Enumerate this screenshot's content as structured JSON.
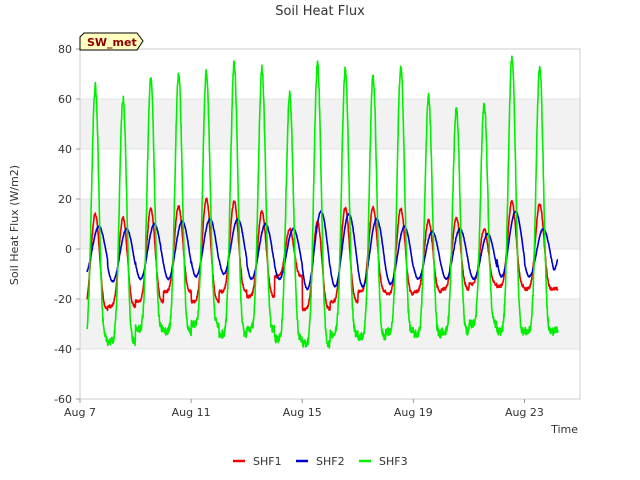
{
  "chart_data": {
    "type": "line",
    "title": "Soil Heat Flux",
    "xlabel": "Time",
    "ylabel": "Soil Heat Flux (W/m2)",
    "ylim": [
      -60,
      80
    ],
    "yticks": [
      -60,
      -40,
      -20,
      0,
      20,
      40,
      60,
      80
    ],
    "xlim": [
      0,
      18
    ],
    "xticks": [
      {
        "value": 0,
        "label": "Aug 7"
      },
      {
        "value": 4,
        "label": "Aug 11"
      },
      {
        "value": 8,
        "label": "Aug 15"
      },
      {
        "value": 12,
        "label": "Aug 19"
      },
      {
        "value": 16,
        "label": "Aug 23"
      }
    ],
    "station_label": "SW_met",
    "legend_position": "bottom",
    "grid": "alternating horizontal bands",
    "series": [
      {
        "name": "SHF1",
        "color": "#ee0000",
        "daily_max": [
          14,
          12.5,
          16,
          17,
          20,
          19,
          15,
          8,
          11,
          16.5,
          16.5,
          16,
          11.5,
          12.5,
          8,
          19,
          18
        ],
        "daily_min": [
          -24,
          -23,
          -21,
          -17,
          -21,
          -17,
          -19,
          -11,
          -24,
          -21,
          -17,
          -18,
          -17,
          -16,
          -14,
          -15,
          -16
        ],
        "end_value": -16
      },
      {
        "name": "SHF2",
        "color": "#0000cc",
        "daily_max": [
          9,
          8,
          10,
          11,
          12,
          12,
          10,
          8,
          15,
          14,
          12,
          9,
          7,
          8,
          6,
          15,
          8
        ],
        "daily_min": [
          -10,
          -13,
          -12,
          -12,
          -11,
          -10,
          -12,
          -12,
          -16,
          -15,
          -15,
          -14,
          -12,
          -12,
          -12,
          -11,
          -11
        ],
        "end_value": -4
      },
      {
        "name": "SHF3",
        "color": "#00ee00",
        "daily_max": [
          65,
          60,
          68,
          70,
          71,
          74,
          72,
          62,
          74,
          72,
          69,
          73,
          61,
          56,
          58,
          77,
          73
        ],
        "daily_min": [
          -36,
          -37,
          -32,
          -33,
          -30,
          -34,
          -32,
          -36,
          -38,
          -34,
          -35,
          -33,
          -34,
          -33,
          -30,
          -33,
          -33
        ],
        "end_value": -32
      }
    ]
  }
}
